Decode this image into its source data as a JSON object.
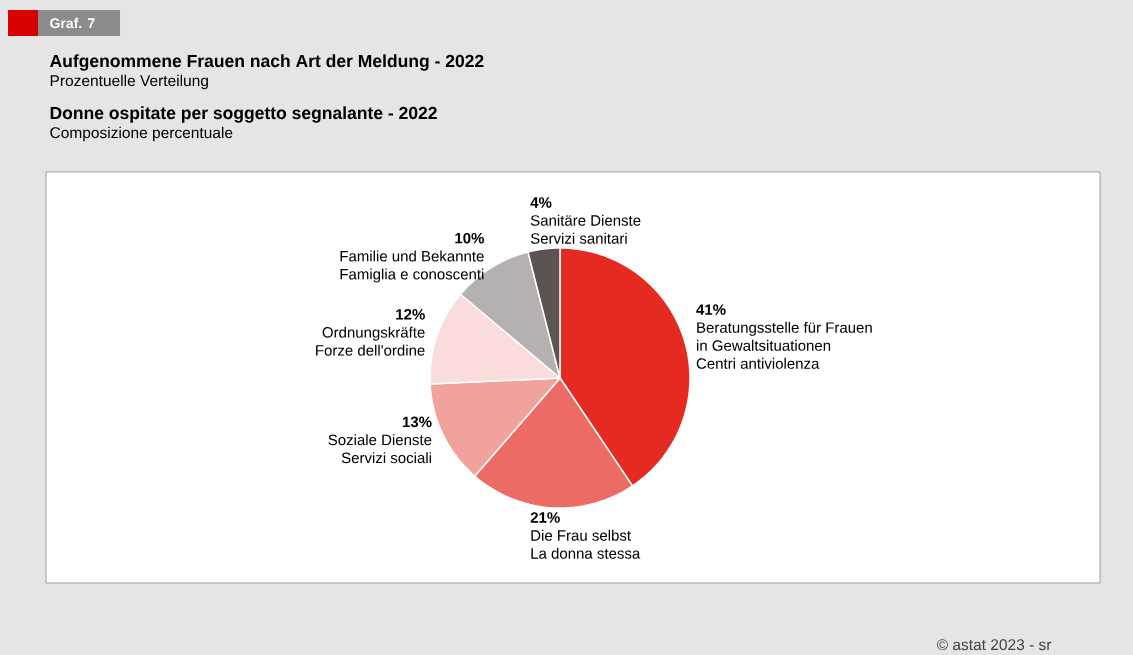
{
  "chart_data": {
    "type": "pie",
    "title": "Aufgenommene Frauen nach Art der Meldung - 2022",
    "subtitle": "Prozentuelle Verteilung",
    "annotations": [
      "Graf. 7",
      "Donne ospitate per soggetto segnalante - 2022",
      "Composizione percentuale",
      "© astat 2023 - sr"
    ],
    "categories": [
      "Beratungsstelle für Frauen\nin Gewaltsituationen\nCentri antiviolenza",
      "Die Frau selbst\nLa donna stessa",
      "Soziale Dienste\nServizi sociali",
      "Ordnungskräfte\nForze dell'ordine",
      "Familie und Bekannte\nFamiglia e conoscenti",
      "Sanitäre Dienste\nServizi sanitari"
    ],
    "values": [
      41,
      21,
      13,
      12,
      10,
      4
    ],
    "value_labels": [
      "41%",
      "21%",
      "13%",
      "12%",
      "10%",
      "4%"
    ],
    "colors": [
      "#e52a22",
      "#ec6b64",
      "#f2a29c",
      "#f9dcdb",
      "#b4b1b0",
      "#5c5452"
    ]
  }
}
